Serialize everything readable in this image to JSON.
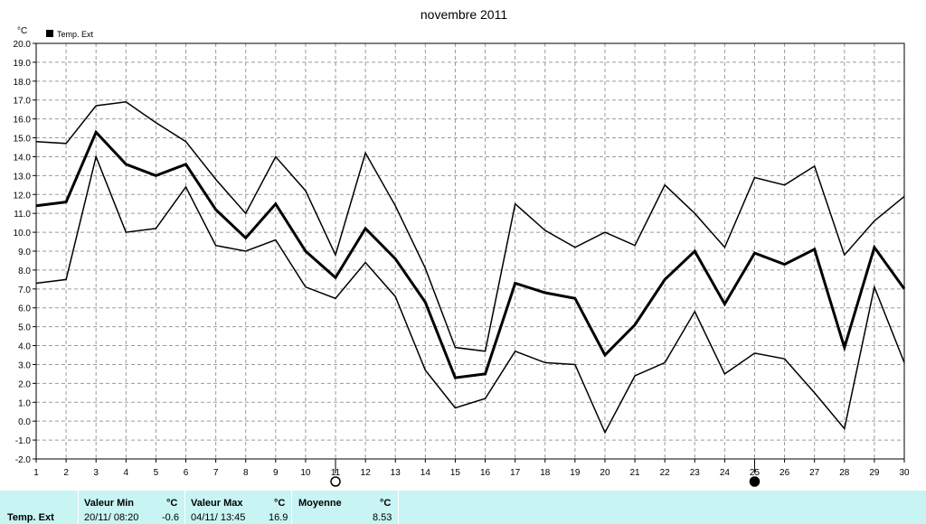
{
  "chart_data": {
    "type": "line",
    "title": "novembre 2011",
    "yunit": "°C",
    "legend": {
      "label": "Temp. Ext",
      "position": "top-left"
    },
    "ylim": [
      -2.0,
      20.0
    ],
    "ytick_step": 1.0,
    "grid": true,
    "x": [
      1,
      2,
      3,
      4,
      5,
      6,
      7,
      8,
      9,
      10,
      11,
      12,
      13,
      14,
      15,
      16,
      17,
      18,
      19,
      20,
      21,
      22,
      23,
      24,
      25,
      26,
      27,
      28,
      29,
      30
    ],
    "series": [
      {
        "role": "max",
        "values": [
          14.8,
          14.7,
          16.7,
          16.9,
          15.8,
          14.8,
          12.8,
          11.0,
          14.0,
          12.2,
          8.8,
          14.2,
          11.4,
          8.1,
          3.9,
          3.7,
          11.5,
          10.1,
          9.2,
          10.0,
          9.3,
          12.5,
          11.0,
          9.2,
          12.9,
          12.5,
          13.5,
          8.8,
          10.6,
          11.9
        ]
      },
      {
        "role": "mean",
        "values": [
          11.4,
          11.6,
          15.3,
          13.6,
          13.0,
          13.6,
          11.2,
          9.7,
          11.5,
          9.0,
          7.6,
          10.2,
          8.6,
          6.3,
          2.3,
          2.5,
          7.3,
          6.8,
          6.5,
          3.5,
          5.1,
          7.5,
          9.0,
          6.2,
          8.9,
          8.3,
          9.1,
          3.9,
          9.2,
          7.0
        ]
      },
      {
        "role": "min",
        "values": [
          7.3,
          7.5,
          14.0,
          10.0,
          10.2,
          12.4,
          9.3,
          9.0,
          9.6,
          7.1,
          6.5,
          8.4,
          6.6,
          2.7,
          0.7,
          1.2,
          3.7,
          3.1,
          3.0,
          -0.6,
          2.4,
          3.1,
          5.8,
          2.5,
          3.6,
          3.3,
          1.5,
          -0.4,
          7.1,
          3.1
        ]
      }
    ],
    "moon_markers": [
      {
        "day": 11,
        "phase": "full"
      },
      {
        "day": 25,
        "phase": "new"
      }
    ]
  },
  "summary": {
    "row_label": "Temp. Ext",
    "min": {
      "header": "Valeur Min",
      "unit": "°C",
      "date": "20/11/ 08:20",
      "value": "-0.6"
    },
    "max": {
      "header": "Valeur Max",
      "unit": "°C",
      "date": "04/11/ 13:45",
      "value": "16.9"
    },
    "mean": {
      "header": "Moyenne",
      "unit": "°C",
      "value": "8.53"
    }
  }
}
